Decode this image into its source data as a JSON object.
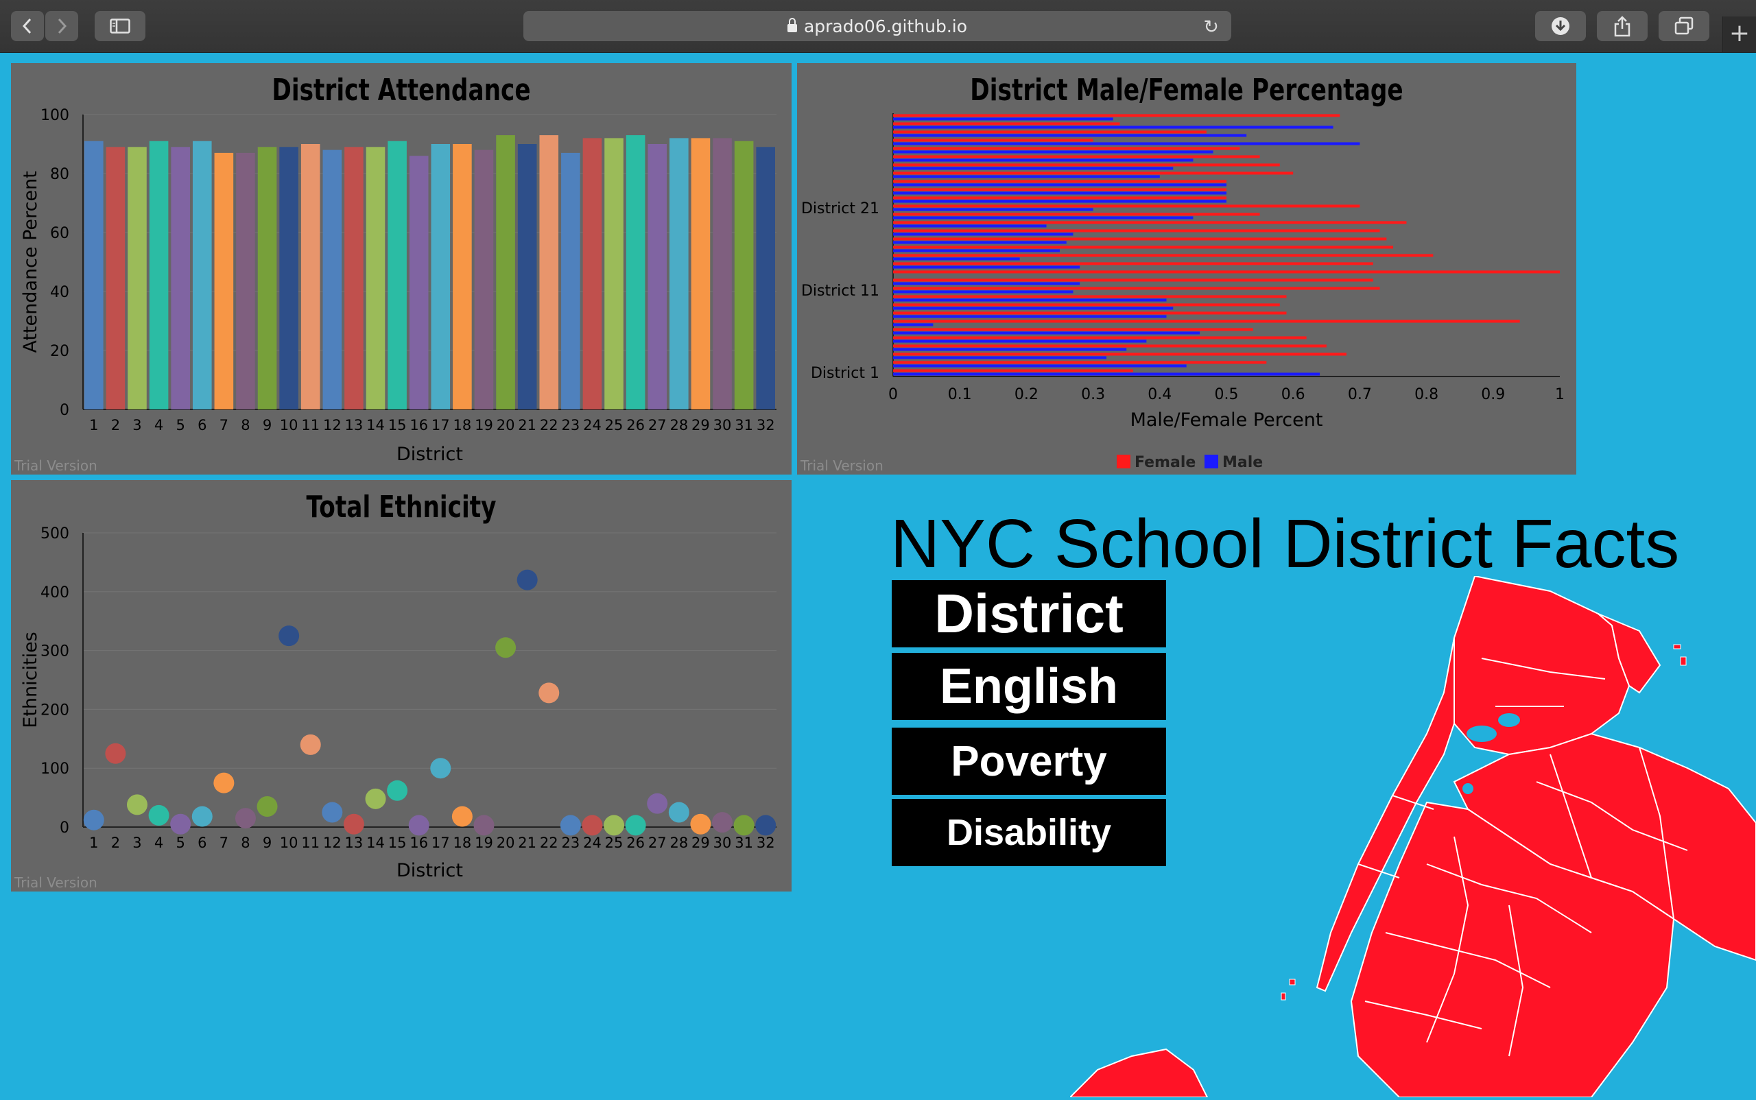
{
  "browser": {
    "url": "aprado06.github.io",
    "back_icon": "chevron-left-icon",
    "forward_icon": "chevron-right-icon",
    "sidebar_icon": "sidebar-icon",
    "reload_icon": "reload-icon",
    "download_icon": "download-icon",
    "share_icon": "share-icon",
    "tabs_icon": "tabs-icon",
    "newtab_label": "+"
  },
  "colors": {
    "background": "#22b0dc",
    "panel": "#666666",
    "female": "#ff1a1a",
    "male": "#1a1aff",
    "map": "#ff1326"
  },
  "page": {
    "title": "NYC School District Facts",
    "buttons": [
      "District",
      "English",
      "Poverty",
      "Disability"
    ],
    "trial_label": "Trial Version"
  },
  "chart_data": [
    {
      "type": "bar",
      "title": "District Attendance",
      "xlabel": "District",
      "ylabel": "Attendance Percent",
      "ylim": [
        0,
        100
      ],
      "yticks": [
        0,
        20,
        40,
        60,
        80,
        100
      ],
      "categories": [
        "1",
        "2",
        "3",
        "4",
        "5",
        "6",
        "7",
        "8",
        "9",
        "10",
        "11",
        "12",
        "13",
        "14",
        "15",
        "16",
        "17",
        "18",
        "19",
        "20",
        "21",
        "22",
        "23",
        "24",
        "25",
        "26",
        "27",
        "28",
        "29",
        "30",
        "31",
        "32"
      ],
      "values": [
        91,
        89,
        89,
        91,
        89,
        91,
        87,
        87,
        89,
        89,
        90,
        88,
        89,
        89,
        91,
        86,
        90,
        90,
        88,
        93,
        90,
        93,
        87,
        92,
        92,
        93,
        90,
        92,
        92,
        92,
        91,
        89
      ],
      "colors": [
        "#4f81bd",
        "#c0504d",
        "#9bbb59",
        "#2bbca4",
        "#8064a2",
        "#4bacc6",
        "#f79646",
        "#7f5f7f",
        "#77a03a",
        "#2e4f8a",
        "#e8956c",
        "#4f81bd",
        "#c0504d",
        "#9bbb59",
        "#2bbca4",
        "#8064a2",
        "#4bacc6",
        "#f79646",
        "#7f5f7f",
        "#77a03a",
        "#2e4f8a",
        "#e8956c",
        "#4f81bd",
        "#c0504d",
        "#9bbb59",
        "#2bbca4",
        "#8064a2",
        "#4bacc6",
        "#f79646",
        "#7f5f7f",
        "#77a03a",
        "#2e4f8a"
      ],
      "grid": true
    },
    {
      "type": "bar",
      "orientation": "horizontal",
      "title": "District Male/Female Percentage",
      "xlabel": "Male/Female Percent",
      "xlim": [
        0,
        1
      ],
      "xticks": [
        "0",
        "0.1",
        "0.2",
        "0.3",
        "0.4",
        "0.5",
        "0.6",
        "0.7",
        "0.8",
        "0.9",
        "1"
      ],
      "yticks": [
        "District 1",
        "District 11",
        "District 21"
      ],
      "categories": [
        "1",
        "2",
        "3",
        "4",
        "5",
        "6",
        "7",
        "8",
        "9",
        "10",
        "11",
        "12",
        "13",
        "14",
        "15",
        "16",
        "17",
        "18",
        "19",
        "20",
        "21",
        "22",
        "23",
        "24",
        "25",
        "26",
        "27",
        "28",
        "29",
        "30",
        "31",
        "32"
      ],
      "series": [
        {
          "name": "Female",
          "values": [
            0.36,
            0.56,
            0.68,
            0.65,
            0.62,
            0.54,
            0.94,
            0.59,
            0.58,
            0.59,
            0.73,
            0.72,
            1.0,
            0.72,
            0.81,
            0.75,
            0.74,
            0.73,
            0.77,
            0.55,
            0.7,
            0.5,
            0.5,
            0.5,
            0.6,
            0.58,
            0.55,
            0.52,
            0.3,
            0.47,
            0.34,
            0.67
          ]
        },
        {
          "name": "Male",
          "values": [
            0.64,
            0.44,
            0.32,
            0.35,
            0.38,
            0.46,
            0.06,
            0.41,
            0.42,
            0.41,
            0.27,
            0.28,
            0.0,
            0.28,
            0.19,
            0.25,
            0.26,
            0.27,
            0.23,
            0.45,
            0.3,
            0.5,
            0.5,
            0.5,
            0.4,
            0.42,
            0.45,
            0.48,
            0.7,
            0.53,
            0.66,
            0.33
          ]
        }
      ],
      "legend": "bottom"
    },
    {
      "type": "scatter",
      "title": "Total Ethnicity",
      "xlabel": "District",
      "ylabel": "Ethnicities",
      "ylim": [
        0,
        500
      ],
      "yticks": [
        0,
        100,
        200,
        300,
        400,
        500
      ],
      "categories": [
        "1",
        "2",
        "3",
        "4",
        "5",
        "6",
        "7",
        "8",
        "9",
        "10",
        "11",
        "12",
        "13",
        "14",
        "15",
        "16",
        "17",
        "18",
        "19",
        "20",
        "21",
        "22",
        "23",
        "24",
        "25",
        "26",
        "27",
        "28",
        "29",
        "30",
        "31",
        "32"
      ],
      "values": [
        12,
        125,
        38,
        20,
        5,
        18,
        75,
        15,
        35,
        325,
        140,
        25,
        5,
        48,
        62,
        3,
        100,
        18,
        3,
        305,
        420,
        228,
        3,
        3,
        3,
        3,
        40,
        25,
        5,
        8,
        3,
        3
      ],
      "grid": true
    }
  ]
}
